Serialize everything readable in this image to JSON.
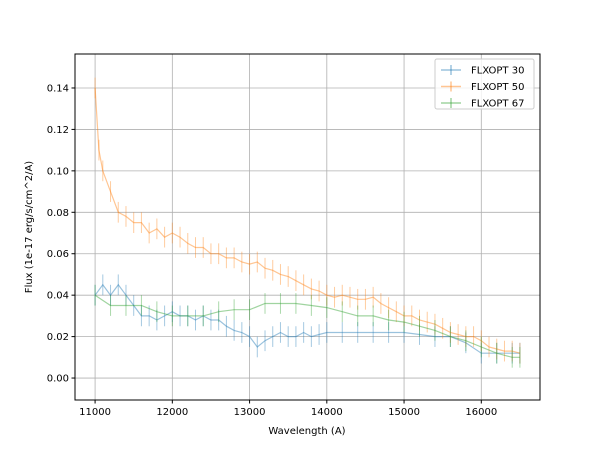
{
  "chart_data": {
    "type": "line",
    "title": "",
    "xlabel": "Wavelength (A)",
    "ylabel": "Flux (1e-17 erg/s/cm^2/A)",
    "xlim": [
      10740,
      16760
    ],
    "ylim": [
      -0.0106,
      0.1564
    ],
    "grid": true,
    "legend_position": "top-right",
    "xticks": [
      11000,
      12000,
      13000,
      14000,
      15000,
      16000
    ],
    "xtick_labels": [
      "11000",
      "12000",
      "13000",
      "14000",
      "15000",
      "16000"
    ],
    "yticks": [
      0.0,
      0.02,
      0.04,
      0.06,
      0.08,
      0.1,
      0.12,
      0.14
    ],
    "ytick_labels": [
      "0.00",
      "0.02",
      "0.04",
      "0.06",
      "0.08",
      "0.10",
      "0.12",
      "0.14"
    ],
    "series": [
      {
        "name": "FLXOPT 30",
        "color": "#1f77b4",
        "x": [
          11000,
          11100,
          11200,
          11300,
          11400,
          11500,
          11600,
          11700,
          11800,
          11900,
          12000,
          12100,
          12200,
          12300,
          12400,
          12500,
          12600,
          12700,
          12800,
          12900,
          13000,
          13100,
          13200,
          13300,
          13400,
          13500,
          13600,
          13700,
          13800,
          13900,
          14000,
          14200,
          14400,
          14600,
          14800,
          15000,
          15200,
          15400,
          15600,
          15800,
          16000,
          16200,
          16400,
          16500
        ],
        "y": [
          0.04,
          0.045,
          0.04,
          0.045,
          0.04,
          0.035,
          0.03,
          0.03,
          0.028,
          0.03,
          0.032,
          0.03,
          0.03,
          0.028,
          0.03,
          0.028,
          0.028,
          0.025,
          0.023,
          0.022,
          0.02,
          0.015,
          0.018,
          0.02,
          0.022,
          0.02,
          0.02,
          0.022,
          0.02,
          0.021,
          0.022,
          0.022,
          0.022,
          0.022,
          0.022,
          0.022,
          0.021,
          0.02,
          0.02,
          0.017,
          0.012,
          0.012,
          0.012,
          0.012
        ]
      },
      {
        "name": "FLXOPT 50",
        "color": "#ff7f0e",
        "x": [
          11000,
          11050,
          11100,
          11200,
          11300,
          11400,
          11500,
          11600,
          11700,
          11800,
          11900,
          12000,
          12100,
          12200,
          12300,
          12400,
          12500,
          12600,
          12700,
          12800,
          12900,
          13000,
          13100,
          13200,
          13300,
          13400,
          13500,
          13600,
          13700,
          13800,
          13900,
          14000,
          14100,
          14200,
          14300,
          14400,
          14500,
          14600,
          14700,
          14800,
          14900,
          15000,
          15100,
          15200,
          15300,
          15400,
          15500,
          15600,
          15700,
          15800,
          15900,
          16000,
          16100,
          16200,
          16300,
          16400,
          16500
        ],
        "y": [
          0.14,
          0.11,
          0.1,
          0.09,
          0.08,
          0.078,
          0.075,
          0.075,
          0.07,
          0.072,
          0.068,
          0.07,
          0.068,
          0.065,
          0.063,
          0.063,
          0.06,
          0.06,
          0.058,
          0.058,
          0.056,
          0.055,
          0.056,
          0.053,
          0.052,
          0.05,
          0.049,
          0.047,
          0.045,
          0.043,
          0.042,
          0.04,
          0.039,
          0.04,
          0.039,
          0.038,
          0.038,
          0.039,
          0.036,
          0.034,
          0.032,
          0.03,
          0.03,
          0.028,
          0.027,
          0.026,
          0.024,
          0.022,
          0.021,
          0.02,
          0.02,
          0.018,
          0.015,
          0.014,
          0.013,
          0.013,
          0.012
        ]
      },
      {
        "name": "FLXOPT 67",
        "color": "#2ca02c",
        "x": [
          11000,
          11200,
          11400,
          11600,
          11800,
          12000,
          12200,
          12400,
          12600,
          12800,
          13000,
          13200,
          13400,
          13600,
          13800,
          14000,
          14200,
          14400,
          14600,
          14800,
          15000,
          15200,
          15400,
          15600,
          15800,
          16000,
          16200,
          16400,
          16500
        ],
        "y": [
          0.04,
          0.035,
          0.035,
          0.035,
          0.032,
          0.03,
          0.03,
          0.03,
          0.032,
          0.033,
          0.033,
          0.036,
          0.036,
          0.036,
          0.035,
          0.034,
          0.032,
          0.03,
          0.03,
          0.028,
          0.027,
          0.025,
          0.023,
          0.02,
          0.018,
          0.015,
          0.012,
          0.01,
          0.01
        ]
      }
    ]
  }
}
